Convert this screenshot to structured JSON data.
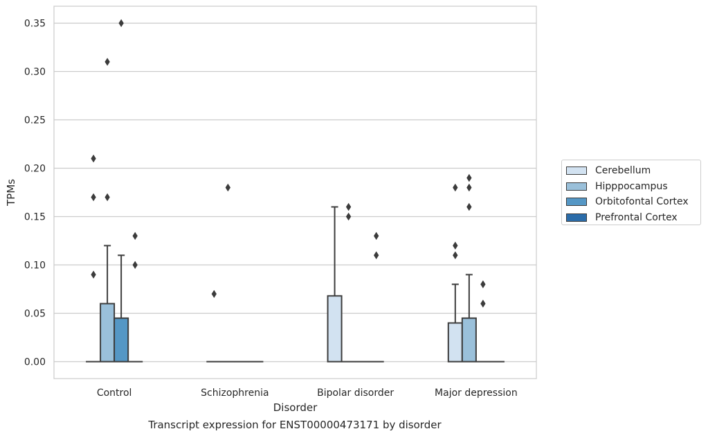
{
  "caption": "Transcript expression for ENST00000473171 by disorder",
  "chart_data": {
    "type": "box",
    "xlabel": "Disorder",
    "ylabel": "TPMs",
    "categories": [
      "Control",
      "Schizophrenia",
      "Bipolar disorder",
      "Major depression"
    ],
    "ylim": [
      -0.0175,
      0.3675
    ],
    "yticks": [
      0.0,
      0.05,
      0.1,
      0.15,
      0.2,
      0.25,
      0.3,
      0.35
    ],
    "ytick_labels": [
      "0.00",
      "0.05",
      "0.10",
      "0.15",
      "0.20",
      "0.25",
      "0.30",
      "0.35"
    ],
    "grid": "horizontal",
    "legend_position": "outside-right",
    "series": [
      {
        "name": "Cerebellum",
        "color": "#d2e2f1",
        "boxes": [
          {
            "q1": 0,
            "median": 0,
            "q3": 0,
            "whisker_low": 0,
            "whisker_high": 0,
            "outliers": [
              0.09,
              0.17,
              0.21
            ]
          },
          {
            "q1": 0,
            "median": 0,
            "q3": 0,
            "whisker_low": 0,
            "whisker_high": 0,
            "outliers": [
              0.07
            ]
          },
          {
            "q1": 0,
            "median": 0,
            "q3": 0.068,
            "whisker_low": 0,
            "whisker_high": 0.16,
            "outliers": []
          },
          {
            "q1": 0,
            "median": 0,
            "q3": 0.04,
            "whisker_low": 0,
            "whisker_high": 0.08,
            "outliers": [
              0.11,
              0.12,
              0.18
            ]
          }
        ]
      },
      {
        "name": "Hipppocampus",
        "color": "#9ac0da",
        "boxes": [
          {
            "q1": 0,
            "median": 0,
            "q3": 0.06,
            "whisker_low": 0,
            "whisker_high": 0.12,
            "outliers": [
              0.17,
              0.31
            ]
          },
          {
            "q1": 0,
            "median": 0,
            "q3": 0,
            "whisker_low": 0,
            "whisker_high": 0,
            "outliers": [
              0.18
            ]
          },
          {
            "q1": 0,
            "median": 0,
            "q3": 0,
            "whisker_low": 0,
            "whisker_high": 0,
            "outliers": [
              0.15,
              0.16
            ]
          },
          {
            "q1": 0,
            "median": 0,
            "q3": 0.045,
            "whisker_low": 0,
            "whisker_high": 0.09,
            "outliers": [
              0.16,
              0.18,
              0.19
            ]
          }
        ]
      },
      {
        "name": "Orbitofontal Cortex",
        "color": "#5597c5",
        "boxes": [
          {
            "q1": 0,
            "median": 0,
            "q3": 0.045,
            "whisker_low": 0,
            "whisker_high": 0.11,
            "outliers": [
              0.35
            ]
          },
          {
            "q1": 0,
            "median": 0,
            "q3": 0,
            "whisker_low": 0,
            "whisker_high": 0,
            "outliers": []
          },
          {
            "q1": 0,
            "median": 0,
            "q3": 0,
            "whisker_low": 0,
            "whisker_high": 0,
            "outliers": []
          },
          {
            "q1": 0,
            "median": 0,
            "q3": 0,
            "whisker_low": 0,
            "whisker_high": 0,
            "outliers": [
              0.06,
              0.08
            ]
          }
        ]
      },
      {
        "name": "Prefrontal Cortex",
        "color": "#2b6ca9",
        "boxes": [
          {
            "q1": 0,
            "median": 0,
            "q3": 0,
            "whisker_low": 0,
            "whisker_high": 0,
            "outliers": [
              0.1,
              0.13
            ]
          },
          {
            "q1": 0,
            "median": 0,
            "q3": 0,
            "whisker_low": 0,
            "whisker_high": 0,
            "outliers": []
          },
          {
            "q1": 0,
            "median": 0,
            "q3": 0,
            "whisker_low": 0,
            "whisker_high": 0,
            "outliers": [
              0.11,
              0.13
            ]
          },
          {
            "q1": 0,
            "median": 0,
            "q3": 0,
            "whisker_low": 0,
            "whisker_high": 0,
            "outliers": []
          }
        ]
      }
    ]
  }
}
